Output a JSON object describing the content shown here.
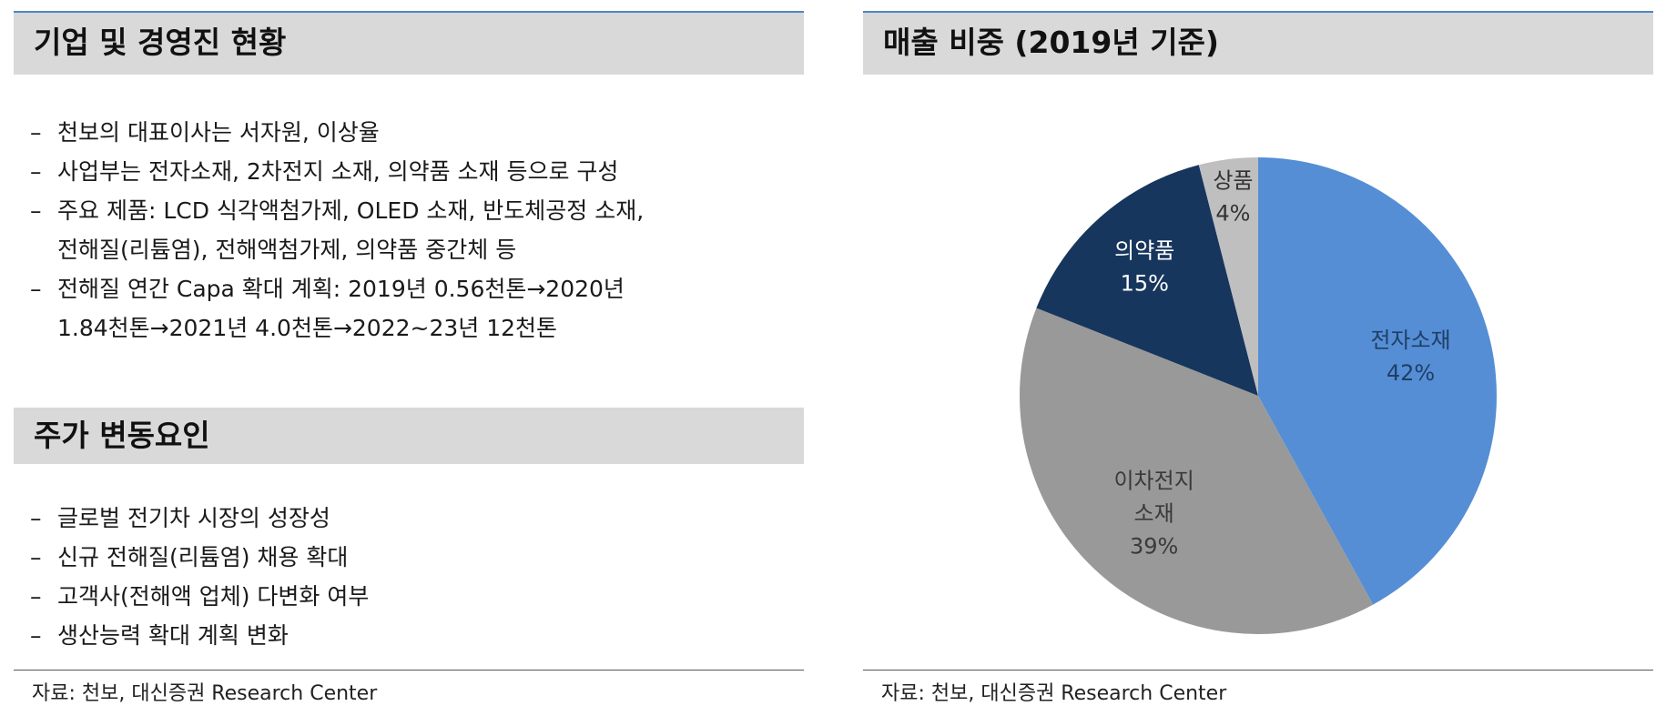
{
  "left": {
    "header1": "기업 및 경영진 현황",
    "bullets1": [
      "천보의 대표이사는 서자원, 이상율",
      "사업부는 전자소재, 2차전지 소재, 의약품 소재 등으로 구성",
      "주요 제품: LCD 식각액첨가제, OLED 소재, 반도체공정 소재,\n전해질(리튬염), 전해액첨가제, 의약품 중간체 등",
      "전해질 연간 Capa 확대 계획: 2019년 0.56천톤→2020년\n1.84천톤→2021년 4.0천톤→2022~23년 12천톤"
    ],
    "header2": "주가 변동요인",
    "bullets2": [
      "글로벌 전기차 시장의 성장성",
      "신규 전해질(리튬염) 채용 확대",
      "고객사(전해액 업체) 다변화 여부",
      "생산능력 확대 계획 변화"
    ],
    "dash": "–",
    "source": "자료: 천보, 대신증권 Research Center"
  },
  "right": {
    "header": "매출 비중 (2019년 기준)",
    "source": "자료: 천보, 대신증권 Research Center"
  },
  "chart_data": {
    "type": "pie",
    "title": "매출 비중 (2019년 기준)",
    "start_angle_deg": 0,
    "direction": "clockwise",
    "slices": [
      {
        "label": "전자소재",
        "value": 42,
        "value_label": "42%",
        "color": "#558ed5",
        "text_color": "#1f3f66"
      },
      {
        "label": "이차전지\n소재",
        "value": 39,
        "value_label": "39%",
        "color": "#999999",
        "text_color": "#3a3a3a"
      },
      {
        "label": "의약품",
        "value": 15,
        "value_label": "15%",
        "color": "#17365d",
        "text_color": "#ffffff"
      },
      {
        "label": "상품",
        "value": 4,
        "value_label": "4%",
        "color": "#bfbfbf",
        "text_color": "#333333"
      }
    ]
  }
}
